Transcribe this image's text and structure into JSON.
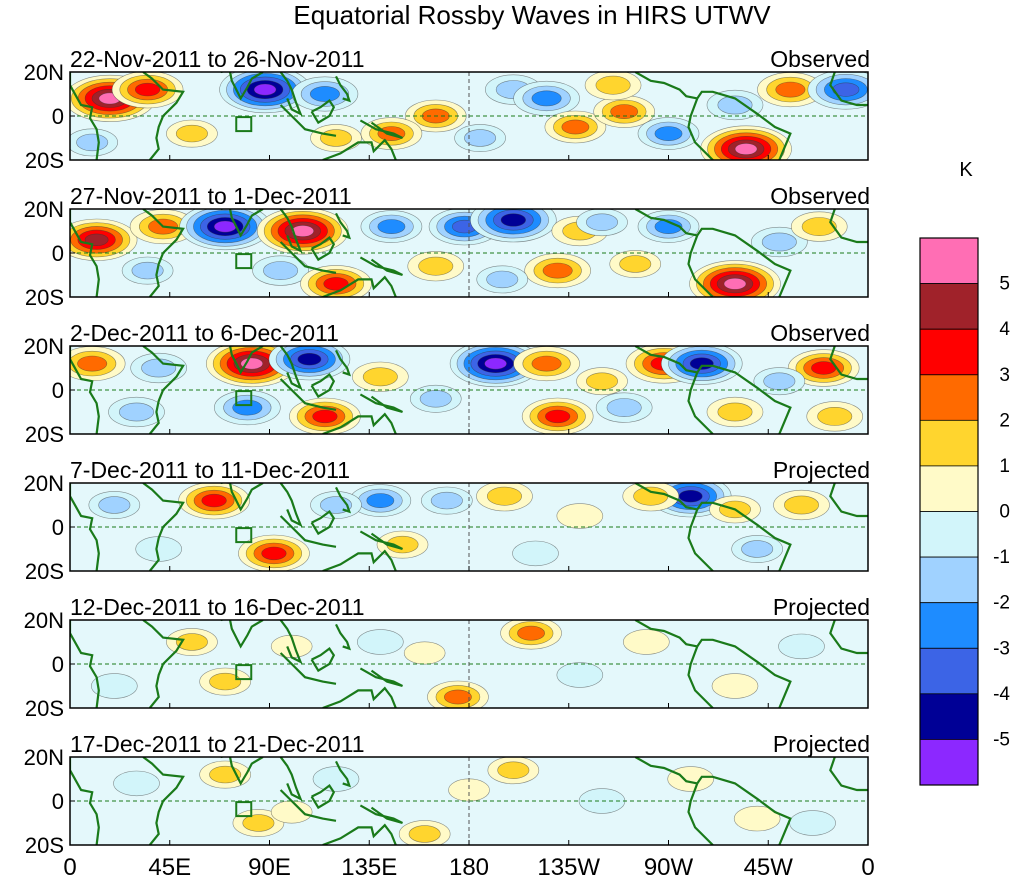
{
  "chart_data": {
    "type": "heatmap",
    "title": "Equatorial Rossby Waves in HIRS UTWV",
    "unit_label": "K",
    "x_ticks": [
      "0",
      "45E",
      "90E",
      "135E",
      "180",
      "135W",
      "90W",
      "45W",
      "0"
    ],
    "y_ticks": [
      "20N",
      "0",
      "20S"
    ],
    "x_range_deg": [
      0,
      360
    ],
    "y_range_deg": [
      -20,
      20
    ],
    "panels": [
      {
        "date_range": "22-Nov-2011 to 26-Nov-2011",
        "label": "Observed",
        "features": [
          {
            "lon": 18,
            "lat": 8,
            "value": 5.5
          },
          {
            "lon": 35,
            "lat": 12,
            "value": 3.5
          },
          {
            "lon": 88,
            "lat": 12,
            "value": -5.5
          },
          {
            "lon": 10,
            "lat": -12,
            "value": -1.5
          },
          {
            "lon": 55,
            "lat": -8,
            "value": 1.5
          },
          {
            "lon": 115,
            "lat": 10,
            "value": -3
          },
          {
            "lon": 120,
            "lat": -10,
            "value": 1.5
          },
          {
            "lon": 165,
            "lat": 0,
            "value": 2.5
          },
          {
            "lon": 145,
            "lat": -8,
            "value": 2.5
          },
          {
            "lon": 200,
            "lat": 12,
            "value": -2
          },
          {
            "lon": 215,
            "lat": 8,
            "value": -3
          },
          {
            "lon": 228,
            "lat": -5,
            "value": 2.5
          },
          {
            "lon": 250,
            "lat": 2,
            "value": 2.5
          },
          {
            "lon": 270,
            "lat": -8,
            "value": -2.5
          },
          {
            "lon": 305,
            "lat": -15,
            "value": 5.5
          },
          {
            "lon": 325,
            "lat": 12,
            "value": 3
          },
          {
            "lon": 350,
            "lat": 12,
            "value": -4
          },
          {
            "lon": 300,
            "lat": 5,
            "value": -2
          },
          {
            "lon": 185,
            "lat": -10,
            "value": -1.5
          },
          {
            "lon": 245,
            "lat": 14,
            "value": 2
          }
        ]
      },
      {
        "date_range": "27-Nov-2011 to 1-Dec-2011",
        "label": "Observed",
        "features": [
          {
            "lon": 12,
            "lat": 6,
            "value": 4.5
          },
          {
            "lon": 42,
            "lat": 12,
            "value": 3
          },
          {
            "lon": 70,
            "lat": 12,
            "value": -5.5
          },
          {
            "lon": 105,
            "lat": 10,
            "value": 5.5
          },
          {
            "lon": 35,
            "lat": -8,
            "value": -1.5
          },
          {
            "lon": 95,
            "lat": -8,
            "value": -2
          },
          {
            "lon": 120,
            "lat": -14,
            "value": 3.5
          },
          {
            "lon": 145,
            "lat": 12,
            "value": -2.5
          },
          {
            "lon": 178,
            "lat": 12,
            "value": -3.5
          },
          {
            "lon": 200,
            "lat": 15,
            "value": -5
          },
          {
            "lon": 220,
            "lat": -8,
            "value": 3
          },
          {
            "lon": 230,
            "lat": 10,
            "value": 2
          },
          {
            "lon": 255,
            "lat": -5,
            "value": 1.5
          },
          {
            "lon": 270,
            "lat": 12,
            "value": -2.5
          },
          {
            "lon": 300,
            "lat": -14,
            "value": 5.5
          },
          {
            "lon": 320,
            "lat": 5,
            "value": -2
          },
          {
            "lon": 338,
            "lat": 12,
            "value": 2
          },
          {
            "lon": 165,
            "lat": -6,
            "value": 2
          },
          {
            "lon": 195,
            "lat": -12,
            "value": -1.5
          },
          {
            "lon": 240,
            "lat": 14,
            "value": -1.5
          }
        ]
      },
      {
        "date_range": "2-Dec-2011 to 6-Dec-2011",
        "label": "Observed",
        "features": [
          {
            "lon": 10,
            "lat": 12,
            "value": 3
          },
          {
            "lon": 40,
            "lat": 10,
            "value": -2
          },
          {
            "lon": 82,
            "lat": 12,
            "value": 5.5
          },
          {
            "lon": 108,
            "lat": 14,
            "value": -4.5
          },
          {
            "lon": 30,
            "lat": -10,
            "value": -2
          },
          {
            "lon": 80,
            "lat": -8,
            "value": -3
          },
          {
            "lon": 115,
            "lat": -12,
            "value": 3.5
          },
          {
            "lon": 140,
            "lat": 6,
            "value": 2
          },
          {
            "lon": 165,
            "lat": -4,
            "value": -1.5
          },
          {
            "lon": 192,
            "lat": 12,
            "value": -5.5
          },
          {
            "lon": 215,
            "lat": 12,
            "value": 3
          },
          {
            "lon": 220,
            "lat": -12,
            "value": 3.5
          },
          {
            "lon": 250,
            "lat": -8,
            "value": -2
          },
          {
            "lon": 268,
            "lat": 12,
            "value": 4
          },
          {
            "lon": 285,
            "lat": 12,
            "value": -4.5
          },
          {
            "lon": 300,
            "lat": -10,
            "value": 2
          },
          {
            "lon": 340,
            "lat": 10,
            "value": 3.5
          },
          {
            "lon": 345,
            "lat": -12,
            "value": 2
          },
          {
            "lon": 320,
            "lat": 4,
            "value": -1.5
          },
          {
            "lon": 240,
            "lat": 4,
            "value": 1.5
          }
        ]
      },
      {
        "date_range": "7-Dec-2011 to 11-Dec-2011",
        "label": "Projected",
        "features": [
          {
            "lon": 65,
            "lat": 12,
            "value": 3.5
          },
          {
            "lon": 92,
            "lat": -12,
            "value": 3.5
          },
          {
            "lon": 140,
            "lat": 12,
            "value": -2.5
          },
          {
            "lon": 170,
            "lat": 12,
            "value": -1.5
          },
          {
            "lon": 196,
            "lat": 14,
            "value": 2
          },
          {
            "lon": 280,
            "lat": 14,
            "value": -4.5
          },
          {
            "lon": 262,
            "lat": 14,
            "value": 2
          },
          {
            "lon": 40,
            "lat": -10,
            "value": -1
          },
          {
            "lon": 150,
            "lat": -8,
            "value": 1.5
          },
          {
            "lon": 120,
            "lat": 10,
            "value": -1.5
          },
          {
            "lon": 230,
            "lat": 5,
            "value": 1
          },
          {
            "lon": 300,
            "lat": 8,
            "value": 1.5
          },
          {
            "lon": 330,
            "lat": 10,
            "value": 2
          },
          {
            "lon": 20,
            "lat": 10,
            "value": -1.5
          },
          {
            "lon": 210,
            "lat": -12,
            "value": -1
          },
          {
            "lon": 310,
            "lat": -10,
            "value": -1.5
          }
        ]
      },
      {
        "date_range": "12-Dec-2011 to 16-Dec-2011",
        "label": "Projected",
        "features": [
          {
            "lon": 55,
            "lat": 10,
            "value": 1.5
          },
          {
            "lon": 70,
            "lat": -8,
            "value": 1.5
          },
          {
            "lon": 175,
            "lat": -15,
            "value": 2.5
          },
          {
            "lon": 208,
            "lat": 14,
            "value": 2.5
          },
          {
            "lon": 140,
            "lat": 10,
            "value": -1
          },
          {
            "lon": 230,
            "lat": -5,
            "value": -1
          },
          {
            "lon": 260,
            "lat": 10,
            "value": 1
          },
          {
            "lon": 300,
            "lat": -10,
            "value": 1
          },
          {
            "lon": 20,
            "lat": -10,
            "value": -1
          },
          {
            "lon": 100,
            "lat": 8,
            "value": 0.5
          },
          {
            "lon": 330,
            "lat": 8,
            "value": -1
          },
          {
            "lon": 160,
            "lat": 5,
            "value": 0.5
          }
        ]
      },
      {
        "date_range": "17-Dec-2011 to 21-Dec-2011",
        "label": "Projected",
        "features": [
          {
            "lon": 70,
            "lat": 12,
            "value": 1.5
          },
          {
            "lon": 85,
            "lat": -10,
            "value": 1.5
          },
          {
            "lon": 160,
            "lat": -15,
            "value": 1.5
          },
          {
            "lon": 200,
            "lat": 14,
            "value": 1.5
          },
          {
            "lon": 120,
            "lat": 10,
            "value": -1
          },
          {
            "lon": 240,
            "lat": 0,
            "value": -1
          },
          {
            "lon": 280,
            "lat": 10,
            "value": 1
          },
          {
            "lon": 310,
            "lat": -8,
            "value": 1
          },
          {
            "lon": 30,
            "lat": 8,
            "value": -1
          },
          {
            "lon": 335,
            "lat": -10,
            "value": -1
          },
          {
            "lon": 100,
            "lat": -5,
            "value": 0.5
          },
          {
            "lon": 180,
            "lat": 5,
            "value": 0.5
          }
        ]
      }
    ],
    "colorbar": {
      "levels": [
        {
          "label": "5",
          "color": "#ff6eb4"
        },
        {
          "label": "4",
          "color": "#a0222a"
        },
        {
          "label": "3",
          "color": "#ff0000"
        },
        {
          "label": "2",
          "color": "#ff6a00"
        },
        {
          "label": "1",
          "color": "#ffd52e"
        },
        {
          "label": "0",
          "color": "#fffac8"
        },
        {
          "label": "-1",
          "color": "#d2f5fa"
        },
        {
          "label": "-2",
          "color": "#a0d2ff"
        },
        {
          "label": "-3",
          "color": "#1e8cff"
        },
        {
          "label": "-4",
          "color": "#3c64e6"
        },
        {
          "label": "-5",
          "color": "#000096"
        },
        {
          "label": "",
          "color": "#8c28ff"
        }
      ]
    }
  }
}
